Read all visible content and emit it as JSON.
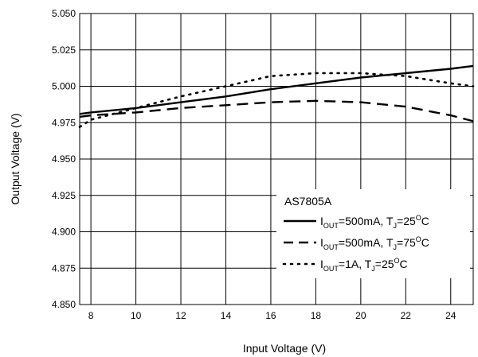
{
  "chart_data": {
    "type": "line",
    "xlabel": "Input Voltage (V)",
    "ylabel": "Output Voltage (V)",
    "xlim": [
      7.5,
      25
    ],
    "ylim": [
      4.85,
      5.05
    ],
    "x_ticks": [
      8,
      10,
      12,
      14,
      16,
      18,
      20,
      22,
      24
    ],
    "x_tick_labels": [
      "8",
      "10",
      "12",
      "14",
      "16",
      "18",
      "20",
      "22",
      "24"
    ],
    "y_ticks": [
      4.85,
      4.875,
      4.9,
      4.925,
      4.95,
      4.975,
      5.0,
      5.025,
      5.05
    ],
    "y_tick_labels": [
      "4.850",
      "4.875",
      "4.900",
      "4.925",
      "4.950",
      "4.975",
      "5.000",
      "5.025",
      "5.050"
    ],
    "grid": true,
    "legend": {
      "placement": "bottom-right",
      "title": "AS7805A"
    },
    "series": [
      {
        "name": "I_OUT=500mA, T_J=25°C",
        "legend": {
          "i": "I",
          "i_sub": "OUT",
          "mid": "=500mA, T",
          "t_sub": "J",
          "temp": "=25",
          "deg": "O",
          "unit": "C"
        },
        "style": "solid",
        "x": [
          7.5,
          8,
          10,
          12,
          14,
          16,
          18,
          20,
          22,
          24,
          25
        ],
        "y": [
          4.981,
          4.982,
          4.985,
          4.989,
          4.993,
          4.998,
          5.002,
          5.006,
          5.009,
          5.012,
          5.014
        ]
      },
      {
        "name": "I_OUT=500mA, T_J=75°C",
        "legend": {
          "i": "I",
          "i_sub": "OUT",
          "mid": "=500mA, T",
          "t_sub": "J",
          "temp": "=75",
          "deg": "O",
          "unit": "C"
        },
        "style": "dashed",
        "x": [
          7.5,
          8,
          10,
          12,
          14,
          16,
          18,
          20,
          22,
          24,
          25
        ],
        "y": [
          4.979,
          4.98,
          4.982,
          4.985,
          4.987,
          4.989,
          4.99,
          4.989,
          4.986,
          4.98,
          4.976
        ]
      },
      {
        "name": "I_OUT=1A, T_J=25°C",
        "legend": {
          "i": "I",
          "i_sub": "OUT",
          "mid": "=1A, T",
          "t_sub": "J",
          "temp": "=25",
          "deg": "O",
          "unit": "C"
        },
        "style": "dotted",
        "x": [
          7.5,
          8,
          10,
          12,
          14,
          16,
          18,
          20,
          22,
          24,
          25
        ],
        "y": [
          4.972,
          4.977,
          4.985,
          4.993,
          5.0,
          5.007,
          5.009,
          5.009,
          5.007,
          5.002,
          5.0
        ]
      }
    ]
  }
}
